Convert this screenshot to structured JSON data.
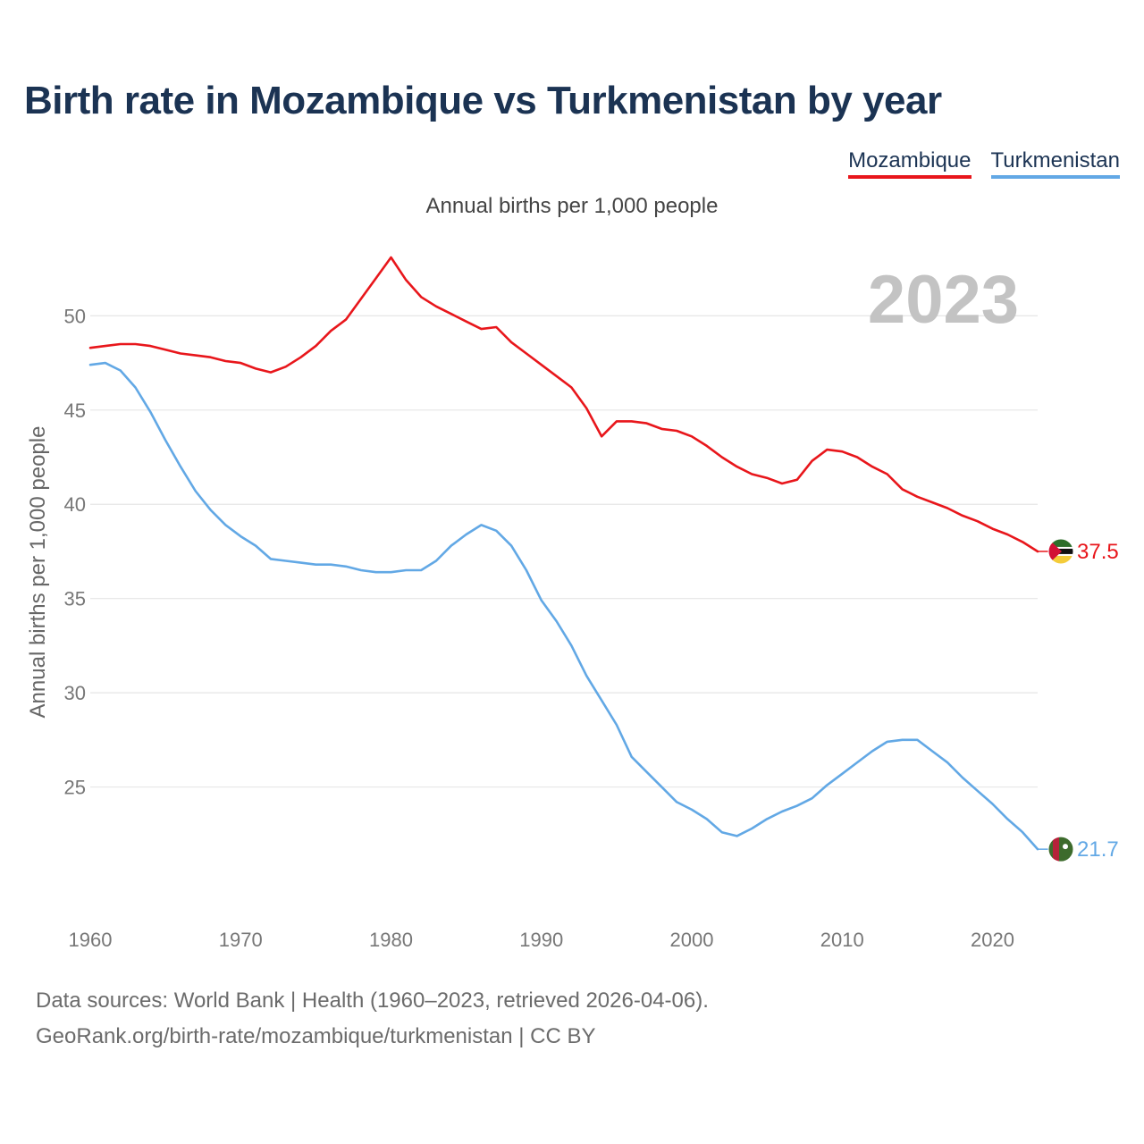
{
  "title": "Birth rate in Mozambique vs Turkmenistan by year",
  "subtitle": "Annual births per 1,000 people",
  "legend": [
    "Mozambique",
    "Turkmenistan"
  ],
  "footer": {
    "line1": "Data sources: World Bank | Health (1960–2023, retrieved 2026-04-06).",
    "line2": "GeoRank.org/birth-rate/mozambique/turkmenistan | CC BY"
  },
  "colors": {
    "mozambique": "#e8161b",
    "turkmenistan": "#62a8e5",
    "title": "#1b3353"
  },
  "chart_data": {
    "type": "line",
    "title": "Birth rate in Mozambique vs Turkmenistan by year",
    "subtitle": "Annual births per 1,000 people",
    "xlabel": "",
    "ylabel": "Annual births per 1,000 people",
    "year_label": "2023",
    "xlim": [
      1960,
      2023
    ],
    "ylim": [
      20,
      54
    ],
    "x_ticks": [
      1960,
      1970,
      1980,
      1990,
      2000,
      2010,
      2020
    ],
    "y_ticks": [
      25,
      30,
      35,
      40,
      45,
      50
    ],
    "grid": true,
    "legend_position": "top-right",
    "x": [
      1960,
      1961,
      1962,
      1963,
      1964,
      1965,
      1966,
      1967,
      1968,
      1969,
      1970,
      1971,
      1972,
      1973,
      1974,
      1975,
      1976,
      1977,
      1978,
      1979,
      1980,
      1981,
      1982,
      1983,
      1984,
      1985,
      1986,
      1987,
      1988,
      1989,
      1990,
      1991,
      1992,
      1993,
      1994,
      1995,
      1996,
      1997,
      1998,
      1999,
      2000,
      2001,
      2002,
      2003,
      2004,
      2005,
      2006,
      2007,
      2008,
      2009,
      2010,
      2011,
      2012,
      2013,
      2014,
      2015,
      2016,
      2017,
      2018,
      2019,
      2020,
      2021,
      2022,
      2023
    ],
    "series": [
      {
        "name": "Mozambique",
        "color": "#e8161b",
        "end_label": "37.5",
        "values": [
          48.3,
          48.4,
          48.5,
          48.5,
          48.4,
          48.2,
          48.0,
          47.9,
          47.8,
          47.6,
          47.5,
          47.2,
          47.0,
          47.3,
          47.8,
          48.4,
          49.2,
          49.8,
          50.9,
          52.0,
          53.1,
          51.9,
          51.0,
          50.5,
          50.1,
          49.7,
          49.3,
          49.4,
          48.6,
          48.0,
          47.4,
          46.8,
          46.2,
          45.1,
          43.6,
          44.4,
          44.4,
          44.3,
          44.0,
          43.9,
          43.6,
          43.1,
          42.5,
          42.0,
          41.6,
          41.4,
          41.1,
          41.3,
          42.3,
          42.9,
          42.8,
          42.5,
          42.0,
          41.6,
          40.8,
          40.4,
          40.1,
          39.8,
          39.4,
          39.1,
          38.7,
          38.4,
          38.0,
          37.5
        ]
      },
      {
        "name": "Turkmenistan",
        "color": "#62a8e5",
        "end_label": "21.7",
        "values": [
          47.4,
          47.5,
          47.1,
          46.2,
          44.9,
          43.4,
          42.0,
          40.7,
          39.7,
          38.9,
          38.3,
          37.8,
          37.1,
          37.0,
          36.9,
          36.8,
          36.8,
          36.7,
          36.5,
          36.4,
          36.4,
          36.5,
          36.5,
          37.0,
          37.8,
          38.4,
          38.9,
          38.6,
          37.8,
          36.5,
          34.9,
          33.8,
          32.5,
          30.9,
          29.6,
          28.3,
          26.6,
          25.8,
          25.0,
          24.2,
          23.8,
          23.3,
          22.6,
          22.4,
          22.8,
          23.3,
          23.7,
          24.0,
          24.4,
          25.1,
          25.7,
          26.3,
          26.9,
          27.4,
          27.5,
          27.5,
          26.9,
          26.3,
          25.5,
          24.8,
          24.1,
          23.3,
          22.6,
          21.7
        ]
      }
    ]
  }
}
